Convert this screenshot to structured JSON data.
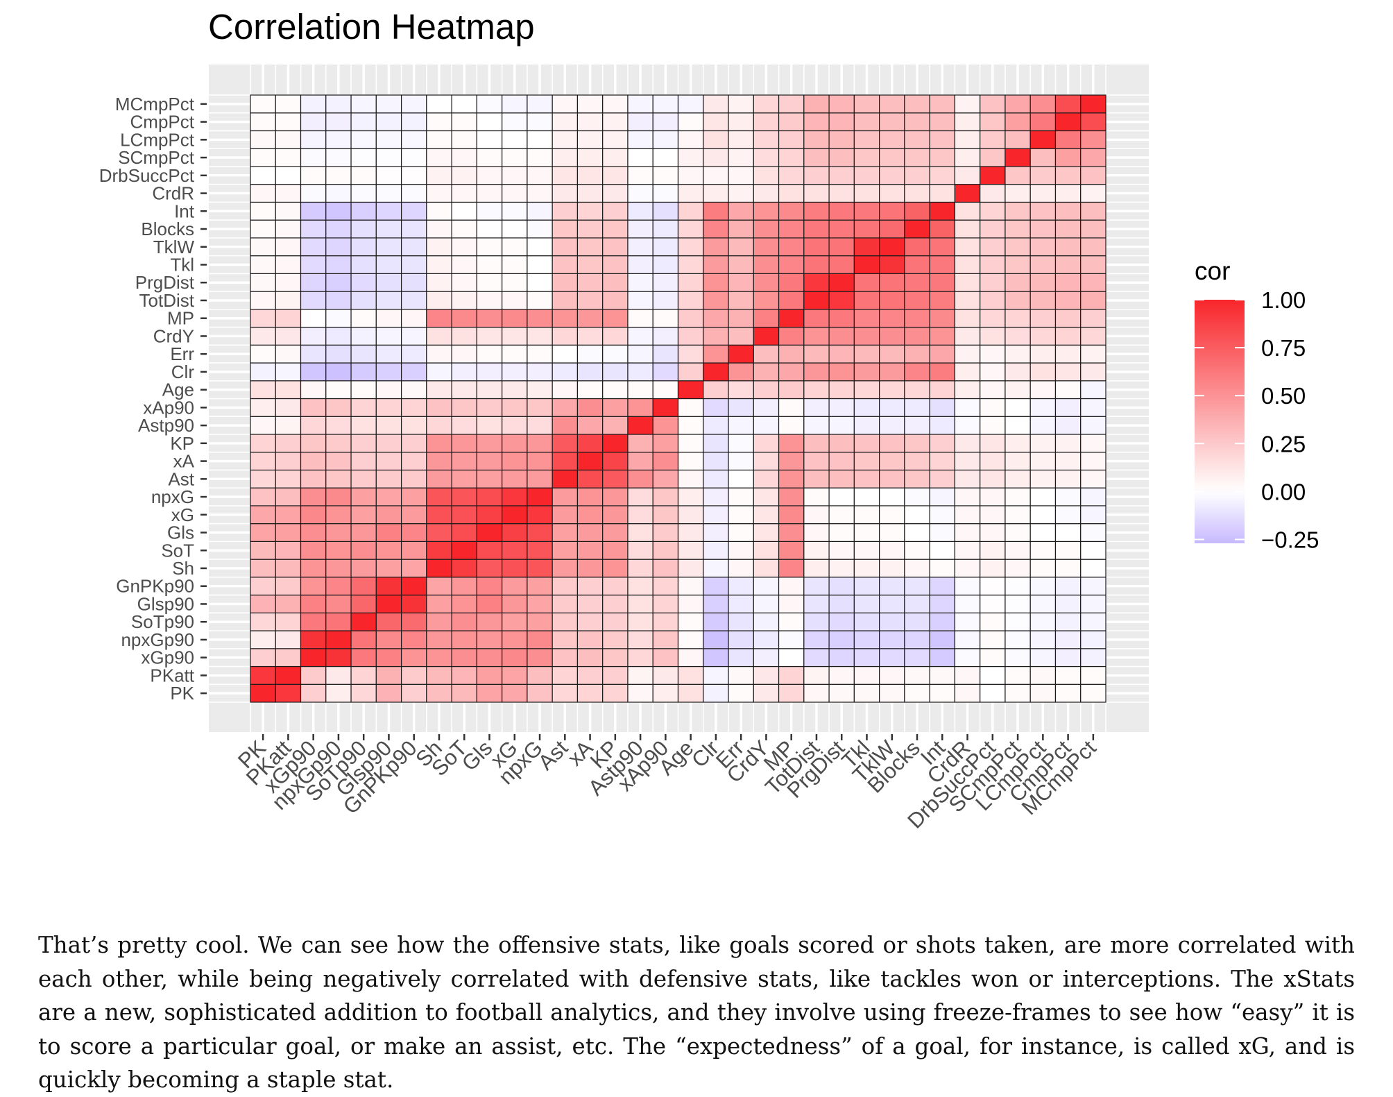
{
  "chart_data": {
    "type": "heatmap",
    "title": "Correlation Heatmap",
    "xlabel": "",
    "ylabel": "",
    "variables": [
      "PK",
      "PKatt",
      "xGp90",
      "npxGp90",
      "SoTp90",
      "Glsp90",
      "GnPKp90",
      "Sh",
      "SoT",
      "Gls",
      "xG",
      "npxG",
      "Ast",
      "xA",
      "KP",
      "Astp90",
      "xAp90",
      "Age",
      "Clr",
      "Err",
      "CrdY",
      "MP",
      "TotDist",
      "PrgDist",
      "Tkl",
      "TklW",
      "Blocks",
      "Int",
      "CrdR",
      "DrbSuccPct",
      "SCmpPct",
      "LCmpPct",
      "CmpPct",
      "MCmpPct"
    ],
    "legend": {
      "title": "cor",
      "position": "right",
      "breaks": [
        1.0,
        0.75,
        0.5,
        0.25,
        0.0,
        -0.25
      ],
      "labels": [
        "1.00",
        "0.75",
        "0.50",
        "0.25",
        "0.00",
        "−0.25"
      ],
      "range": [
        -0.27,
        1.0
      ]
    },
    "colors": {
      "low": "#c7b9ff",
      "mid": "#ffffff",
      "high": "#f8262b",
      "panel": "#ebebeb",
      "grid": "#ffffff",
      "tile_border": "#1a1a1a"
    },
    "groups": {
      "offense_shooting": [
        2,
        3,
        4,
        5,
        6
      ],
      "shooting": [
        7,
        8,
        9,
        10,
        11
      ],
      "passing": [
        12,
        13,
        14
      ],
      "p90_pass": [
        15,
        16
      ],
      "age": [
        17
      ],
      "defense": [
        18,
        19,
        20,
        21,
        22,
        23,
        24,
        25,
        26,
        27
      ],
      "crdr": [
        28
      ],
      "pct": [
        29,
        30,
        31,
        32,
        33
      ]
    },
    "matrix": [
      [
        1.0,
        0.92,
        0.22,
        0.08,
        0.18,
        0.35,
        0.22,
        0.3,
        0.32,
        0.42,
        0.4,
        0.28,
        0.18,
        0.2,
        0.2,
        0.04,
        0.08,
        0.14,
        -0.05,
        0.02,
        0.1,
        0.18,
        0.04,
        0.03,
        0.03,
        0.03,
        0.02,
        0.02,
        0.04,
        0.0,
        0.02,
        0.03,
        0.02,
        0.02
      ],
      [
        0.92,
        1.0,
        0.24,
        0.1,
        0.2,
        0.36,
        0.24,
        0.32,
        0.34,
        0.44,
        0.42,
        0.3,
        0.2,
        0.22,
        0.22,
        0.05,
        0.1,
        0.14,
        -0.04,
        0.03,
        0.11,
        0.2,
        0.05,
        0.04,
        0.04,
        0.04,
        0.03,
        0.03,
        0.04,
        0.0,
        0.02,
        0.03,
        0.02,
        0.02
      ],
      [
        0.22,
        0.24,
        1.0,
        0.94,
        0.62,
        0.58,
        0.5,
        0.5,
        0.52,
        0.52,
        0.55,
        0.52,
        0.28,
        0.3,
        0.26,
        0.18,
        0.28,
        0.04,
        -0.22,
        -0.1,
        -0.06,
        0.0,
        -0.14,
        -0.16,
        -0.14,
        -0.14,
        -0.14,
        -0.2,
        -0.02,
        0.02,
        -0.02,
        -0.04,
        -0.06,
        -0.05
      ],
      [
        0.08,
        0.1,
        0.94,
        1.0,
        0.64,
        0.54,
        0.56,
        0.48,
        0.5,
        0.48,
        0.5,
        0.54,
        0.26,
        0.28,
        0.24,
        0.16,
        0.26,
        0.02,
        -0.24,
        -0.12,
        -0.08,
        -0.02,
        -0.16,
        -0.18,
        -0.16,
        -0.16,
        -0.16,
        -0.22,
        -0.03,
        0.02,
        -0.02,
        -0.04,
        -0.06,
        -0.05
      ],
      [
        0.18,
        0.2,
        0.62,
        0.64,
        1.0,
        0.7,
        0.68,
        0.46,
        0.52,
        0.48,
        0.44,
        0.44,
        0.24,
        0.22,
        0.22,
        0.14,
        0.2,
        0.02,
        -0.2,
        -0.1,
        -0.05,
        0.02,
        -0.12,
        -0.14,
        -0.12,
        -0.12,
        -0.12,
        -0.18,
        -0.02,
        0.02,
        -0.01,
        -0.03,
        -0.05,
        -0.04
      ],
      [
        0.35,
        0.36,
        0.58,
        0.54,
        0.7,
        1.0,
        0.94,
        0.44,
        0.5,
        0.58,
        0.48,
        0.42,
        0.24,
        0.22,
        0.22,
        0.14,
        0.2,
        0.04,
        -0.18,
        -0.08,
        -0.04,
        0.04,
        -0.1,
        -0.12,
        -0.1,
        -0.1,
        -0.1,
        -0.16,
        -0.02,
        0.01,
        -0.01,
        -0.03,
        -0.05,
        -0.04
      ],
      [
        0.22,
        0.24,
        0.5,
        0.56,
        0.68,
        0.94,
        1.0,
        0.42,
        0.48,
        0.56,
        0.46,
        0.44,
        0.24,
        0.22,
        0.22,
        0.14,
        0.2,
        0.03,
        -0.18,
        -0.08,
        -0.04,
        0.04,
        -0.1,
        -0.12,
        -0.1,
        -0.1,
        -0.1,
        -0.16,
        -0.02,
        0.01,
        -0.01,
        -0.03,
        -0.05,
        -0.04
      ],
      [
        0.3,
        0.32,
        0.5,
        0.48,
        0.46,
        0.44,
        0.42,
        1.0,
        0.9,
        0.76,
        0.8,
        0.78,
        0.46,
        0.48,
        0.5,
        0.18,
        0.28,
        0.1,
        -0.04,
        0.04,
        0.14,
        0.56,
        0.08,
        0.06,
        0.06,
        0.06,
        0.04,
        0.02,
        0.04,
        0.06,
        0.04,
        0.02,
        0.02,
        0.0
      ],
      [
        0.32,
        0.34,
        0.52,
        0.5,
        0.52,
        0.5,
        0.48,
        0.9,
        1.0,
        0.82,
        0.8,
        0.78,
        0.44,
        0.46,
        0.48,
        0.16,
        0.26,
        0.1,
        -0.06,
        0.04,
        0.14,
        0.54,
        0.06,
        0.04,
        0.04,
        0.04,
        0.02,
        0.0,
        0.04,
        0.06,
        0.04,
        0.02,
        0.02,
        0.0
      ],
      [
        0.42,
        0.44,
        0.52,
        0.48,
        0.48,
        0.58,
        0.56,
        0.76,
        0.82,
        1.0,
        0.88,
        0.82,
        0.44,
        0.46,
        0.46,
        0.14,
        0.24,
        0.1,
        -0.06,
        0.02,
        0.12,
        0.52,
        0.04,
        0.02,
        0.02,
        0.02,
        0.0,
        -0.02,
        0.04,
        0.04,
        0.02,
        0.0,
        0.0,
        -0.02
      ],
      [
        0.4,
        0.42,
        0.55,
        0.5,
        0.44,
        0.48,
        0.46,
        0.8,
        0.8,
        0.88,
        1.0,
        0.92,
        0.46,
        0.5,
        0.48,
        0.16,
        0.26,
        0.1,
        -0.06,
        0.02,
        0.12,
        0.54,
        0.04,
        0.02,
        0.02,
        0.02,
        0.0,
        -0.02,
        0.04,
        0.04,
        0.02,
        0.0,
        -0.02,
        -0.04
      ],
      [
        0.28,
        0.3,
        0.52,
        0.54,
        0.44,
        0.42,
        0.44,
        0.78,
        0.78,
        0.82,
        0.92,
        1.0,
        0.46,
        0.5,
        0.48,
        0.16,
        0.26,
        0.08,
        -0.06,
        0.02,
        0.12,
        0.52,
        0.02,
        0.0,
        0.0,
        0.0,
        -0.02,
        -0.04,
        0.04,
        0.04,
        0.02,
        0.0,
        -0.02,
        -0.04
      ],
      [
        0.18,
        0.2,
        0.28,
        0.26,
        0.24,
        0.24,
        0.24,
        0.46,
        0.44,
        0.44,
        0.46,
        0.46,
        1.0,
        0.82,
        0.76,
        0.52,
        0.4,
        0.04,
        -0.08,
        0.0,
        0.18,
        0.5,
        0.3,
        0.3,
        0.28,
        0.28,
        0.26,
        0.22,
        0.1,
        0.12,
        0.08,
        0.06,
        0.06,
        0.04
      ],
      [
        0.2,
        0.22,
        0.3,
        0.28,
        0.22,
        0.22,
        0.22,
        0.48,
        0.46,
        0.46,
        0.5,
        0.5,
        0.82,
        1.0,
        0.86,
        0.4,
        0.52,
        0.02,
        -0.1,
        -0.02,
        0.16,
        0.48,
        0.28,
        0.28,
        0.26,
        0.26,
        0.24,
        0.2,
        0.1,
        0.12,
        0.08,
        0.06,
        0.06,
        0.04
      ],
      [
        0.2,
        0.22,
        0.26,
        0.24,
        0.22,
        0.22,
        0.22,
        0.5,
        0.48,
        0.46,
        0.48,
        0.48,
        0.76,
        0.86,
        1.0,
        0.36,
        0.44,
        0.02,
        -0.1,
        -0.02,
        0.18,
        0.5,
        0.3,
        0.3,
        0.28,
        0.28,
        0.26,
        0.22,
        0.1,
        0.12,
        0.08,
        0.06,
        0.06,
        0.04
      ],
      [
        0.04,
        0.05,
        0.18,
        0.16,
        0.14,
        0.14,
        0.14,
        0.18,
        0.16,
        0.14,
        0.16,
        0.16,
        0.52,
        0.4,
        0.36,
        1.0,
        0.5,
        0.02,
        -0.08,
        -0.04,
        -0.04,
        0.02,
        -0.04,
        -0.04,
        -0.06,
        -0.06,
        -0.06,
        -0.08,
        -0.02,
        0.02,
        0.0,
        -0.04,
        -0.06,
        -0.04
      ],
      [
        0.08,
        0.1,
        0.28,
        0.26,
        0.2,
        0.2,
        0.2,
        0.28,
        0.26,
        0.24,
        0.26,
        0.26,
        0.4,
        0.52,
        0.44,
        0.5,
        1.0,
        0.02,
        -0.14,
        -0.1,
        -0.06,
        0.02,
        -0.06,
        -0.06,
        -0.08,
        -0.08,
        -0.08,
        -0.12,
        -0.02,
        0.02,
        0.0,
        -0.04,
        -0.06,
        -0.04
      ],
      [
        0.14,
        0.14,
        0.04,
        0.02,
        0.02,
        0.04,
        0.03,
        0.1,
        0.1,
        0.1,
        0.1,
        0.08,
        0.04,
        0.02,
        0.02,
        0.02,
        0.02,
        1.0,
        0.22,
        0.16,
        0.22,
        0.24,
        0.2,
        0.2,
        0.18,
        0.18,
        0.18,
        0.2,
        0.08,
        0.04,
        0.06,
        0.04,
        0.02,
        -0.04
      ],
      [
        -0.05,
        -0.04,
        -0.22,
        -0.24,
        -0.2,
        -0.18,
        -0.18,
        -0.04,
        -0.06,
        -0.06,
        -0.06,
        -0.06,
        -0.08,
        -0.1,
        -0.1,
        -0.08,
        -0.14,
        0.22,
        1.0,
        0.5,
        0.36,
        0.4,
        0.48,
        0.5,
        0.46,
        0.46,
        0.56,
        0.6,
        0.08,
        0.04,
        0.1,
        0.14,
        0.12,
        0.1
      ],
      [
        0.02,
        0.03,
        -0.1,
        -0.12,
        -0.1,
        -0.08,
        -0.08,
        0.04,
        0.04,
        0.02,
        0.02,
        0.02,
        0.0,
        -0.02,
        -0.02,
        -0.04,
        -0.1,
        0.16,
        0.5,
        1.0,
        0.3,
        0.36,
        0.32,
        0.34,
        0.32,
        0.32,
        0.36,
        0.4,
        0.06,
        0.04,
        0.06,
        0.08,
        0.08,
        0.06
      ],
      [
        0.1,
        0.11,
        -0.06,
        -0.08,
        -0.05,
        -0.04,
        -0.04,
        0.14,
        0.14,
        0.12,
        0.12,
        0.12,
        0.18,
        0.16,
        0.18,
        -0.04,
        -0.06,
        0.22,
        0.36,
        0.3,
        1.0,
        0.58,
        0.5,
        0.52,
        0.52,
        0.52,
        0.52,
        0.5,
        0.1,
        0.14,
        0.16,
        0.18,
        0.2,
        0.18
      ],
      [
        0.18,
        0.2,
        0.0,
        -0.02,
        0.02,
        0.04,
        0.04,
        0.56,
        0.54,
        0.52,
        0.54,
        0.52,
        0.5,
        0.48,
        0.5,
        0.02,
        0.02,
        0.24,
        0.4,
        0.36,
        0.58,
        1.0,
        0.62,
        0.62,
        0.56,
        0.56,
        0.56,
        0.54,
        0.14,
        0.18,
        0.2,
        0.22,
        0.24,
        0.22
      ],
      [
        0.04,
        0.05,
        -0.14,
        -0.16,
        -0.12,
        -0.1,
        -0.1,
        0.08,
        0.06,
        0.04,
        0.04,
        0.02,
        0.3,
        0.28,
        0.3,
        -0.04,
        -0.06,
        0.2,
        0.48,
        0.32,
        0.5,
        0.62,
        1.0,
        0.92,
        0.64,
        0.64,
        0.62,
        0.6,
        0.14,
        0.22,
        0.3,
        0.32,
        0.34,
        0.36
      ],
      [
        0.03,
        0.04,
        -0.16,
        -0.18,
        -0.14,
        -0.12,
        -0.12,
        0.06,
        0.04,
        0.02,
        0.02,
        0.0,
        0.3,
        0.28,
        0.3,
        -0.04,
        -0.06,
        0.2,
        0.5,
        0.34,
        0.52,
        0.62,
        0.92,
        1.0,
        0.64,
        0.64,
        0.62,
        0.62,
        0.14,
        0.22,
        0.3,
        0.32,
        0.34,
        0.34
      ],
      [
        0.03,
        0.04,
        -0.14,
        -0.16,
        -0.12,
        -0.1,
        -0.1,
        0.06,
        0.04,
        0.02,
        0.02,
        0.0,
        0.28,
        0.26,
        0.28,
        -0.06,
        -0.08,
        0.18,
        0.46,
        0.32,
        0.52,
        0.56,
        0.64,
        0.64,
        1.0,
        0.94,
        0.64,
        0.62,
        0.14,
        0.22,
        0.26,
        0.28,
        0.3,
        0.3
      ],
      [
        0.03,
        0.04,
        -0.14,
        -0.16,
        -0.12,
        -0.1,
        -0.1,
        0.06,
        0.04,
        0.02,
        0.02,
        0.0,
        0.28,
        0.26,
        0.28,
        -0.06,
        -0.08,
        0.18,
        0.46,
        0.32,
        0.52,
        0.56,
        0.64,
        0.64,
        0.94,
        1.0,
        0.68,
        0.64,
        0.14,
        0.22,
        0.26,
        0.28,
        0.3,
        0.3
      ],
      [
        0.02,
        0.03,
        -0.14,
        -0.16,
        -0.12,
        -0.1,
        -0.1,
        0.04,
        0.02,
        0.0,
        0.0,
        -0.02,
        0.26,
        0.24,
        0.26,
        -0.06,
        -0.08,
        0.18,
        0.56,
        0.36,
        0.52,
        0.56,
        0.62,
        0.62,
        0.64,
        0.68,
        1.0,
        0.72,
        0.14,
        0.22,
        0.26,
        0.28,
        0.3,
        0.3
      ],
      [
        0.02,
        0.03,
        -0.2,
        -0.22,
        -0.18,
        -0.16,
        -0.16,
        0.02,
        0.0,
        -0.02,
        -0.02,
        -0.04,
        0.22,
        0.2,
        0.22,
        -0.08,
        -0.12,
        0.2,
        0.6,
        0.4,
        0.5,
        0.54,
        0.6,
        0.62,
        0.62,
        0.64,
        0.72,
        1.0,
        0.14,
        0.2,
        0.26,
        0.28,
        0.3,
        0.3
      ],
      [
        0.04,
        0.04,
        -0.02,
        -0.03,
        -0.02,
        -0.02,
        -0.02,
        0.04,
        0.04,
        0.04,
        0.04,
        0.04,
        0.1,
        0.1,
        0.1,
        -0.02,
        -0.02,
        0.08,
        0.08,
        0.06,
        0.1,
        0.14,
        0.14,
        0.14,
        0.14,
        0.14,
        0.14,
        0.14,
        1.0,
        0.1,
        0.08,
        0.08,
        0.08,
        0.06
      ],
      [
        0.0,
        0.0,
        0.02,
        0.02,
        0.02,
        0.01,
        0.01,
        0.06,
        0.06,
        0.04,
        0.04,
        0.04,
        0.12,
        0.12,
        0.12,
        0.02,
        0.02,
        0.04,
        0.04,
        0.04,
        0.14,
        0.18,
        0.22,
        0.22,
        0.22,
        0.22,
        0.22,
        0.2,
        0.1,
        1.0,
        0.26,
        0.24,
        0.26,
        0.28
      ],
      [
        0.02,
        0.02,
        -0.02,
        -0.02,
        -0.01,
        -0.01,
        -0.01,
        0.04,
        0.04,
        0.02,
        0.02,
        0.02,
        0.08,
        0.08,
        0.08,
        0.0,
        0.0,
        0.06,
        0.1,
        0.06,
        0.16,
        0.2,
        0.3,
        0.3,
        0.26,
        0.26,
        0.26,
        0.26,
        0.08,
        0.26,
        1.0,
        0.3,
        0.44,
        0.4
      ],
      [
        0.03,
        0.03,
        -0.04,
        -0.04,
        -0.03,
        -0.03,
        -0.03,
        0.02,
        0.02,
        0.0,
        0.0,
        0.0,
        0.06,
        0.06,
        0.06,
        -0.04,
        -0.04,
        0.04,
        0.14,
        0.08,
        0.18,
        0.22,
        0.32,
        0.32,
        0.28,
        0.28,
        0.28,
        0.28,
        0.08,
        0.24,
        0.3,
        1.0,
        0.62,
        0.52
      ],
      [
        0.02,
        0.02,
        -0.06,
        -0.06,
        -0.05,
        -0.05,
        -0.05,
        0.02,
        0.02,
        0.0,
        -0.02,
        -0.02,
        0.06,
        0.06,
        0.06,
        -0.06,
        -0.06,
        0.02,
        0.12,
        0.08,
        0.2,
        0.24,
        0.34,
        0.34,
        0.3,
        0.3,
        0.3,
        0.3,
        0.08,
        0.26,
        0.44,
        0.62,
        1.0,
        0.82
      ],
      [
        0.02,
        0.02,
        -0.05,
        -0.05,
        -0.04,
        -0.04,
        -0.04,
        0.0,
        0.0,
        -0.02,
        -0.04,
        -0.04,
        0.04,
        0.04,
        0.04,
        -0.04,
        -0.04,
        -0.04,
        0.1,
        0.06,
        0.18,
        0.22,
        0.36,
        0.34,
        0.3,
        0.3,
        0.3,
        0.3,
        0.06,
        0.28,
        0.4,
        0.52,
        0.82,
        1.0
      ]
    ]
  },
  "caption": {
    "text": "That’s pretty cool. We can see how the offensive stats, like goals scored or shots taken, are more correlated with each other, while being negatively correlated with defensive stats, like tackles won or interceptions. The xStats are a new, sophisticated addition to football analytics, and they involve using freeze-frames to see how “easy” it is to score a particular goal, or make an assist, etc. The “expectedness” of a goal, for instance, is called xG, and is quickly becoming a staple stat."
  }
}
